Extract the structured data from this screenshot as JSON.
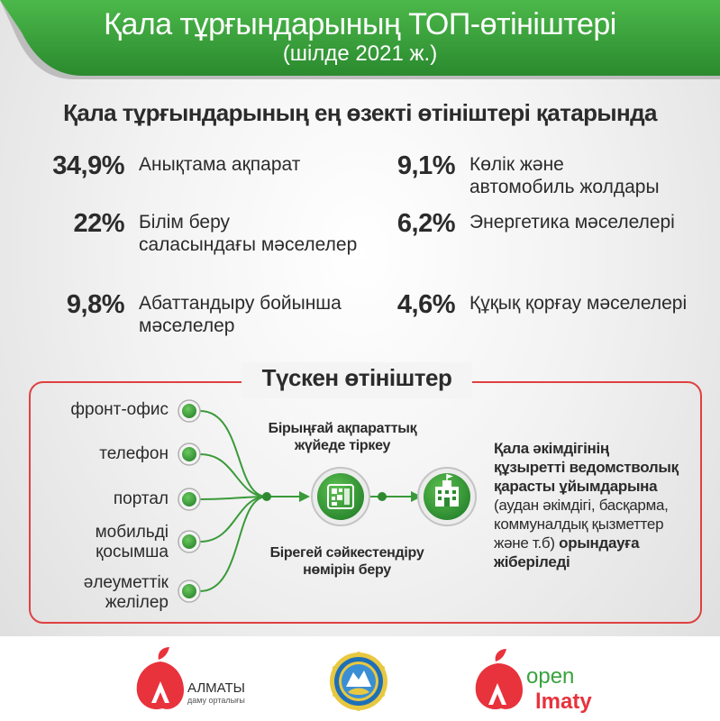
{
  "header": {
    "title": "Қала тұрғындарының ТОП-өтініштері",
    "subtitle": "(шілде 2021 ж.)"
  },
  "section_heading": "Қала тұрғындарының ең өзекті өтініштері қатарында",
  "stats": [
    {
      "percent": "34,9%",
      "label_line1": "Анықтама ақпарат",
      "label_line2": ""
    },
    {
      "percent": "22%",
      "label_line1": "Білім беру",
      "label_line2": "саласындағы мәселелер"
    },
    {
      "percent": "9,8%",
      "label_line1": "Абаттандыру бойынша",
      "label_line2": "мәселелер"
    },
    {
      "percent": "9,1%",
      "label_line1": "Көлік және",
      "label_line2": "автомобиль жолдары"
    },
    {
      "percent": "6,2%",
      "label_line1": "Энергетика мәселелері",
      "label_line2": ""
    },
    {
      "percent": "4,6%",
      "label_line1": "Құқық қорғау мәселелері",
      "label_line2": ""
    }
  ],
  "flow": {
    "title": "Түскен өтініштер",
    "channels": [
      {
        "line1": "фронт-офис",
        "line2": ""
      },
      {
        "line1": "телефон",
        "line2": ""
      },
      {
        "line1": "портал",
        "line2": ""
      },
      {
        "line1": "мобильді",
        "line2": "қосымша"
      },
      {
        "line1": "әлеуметтік",
        "line2": "желілер"
      }
    ],
    "step1_line1": "Бірыңғай ақпараттық",
    "step1_line2": "жүйеде тіркеу",
    "step2_line1": "Бірегей сәйкестендіру",
    "step2_line2": "нөмірін беру",
    "result_bold1": "Қала әкімдігінің",
    "result_bold2": "құзыретті ведомстволық",
    "result_bold3": "қарасты ұйымдарына",
    "result_normal1": "(аудан әкімдігі, басқарма,",
    "result_normal2": "коммуналдық қызметтер",
    "result_normal3": "және т.б)",
    "result_bold4": "орындауға",
    "result_bold5": "жіберіледі"
  },
  "footer": {
    "almaty_logo_main": "АЛМАТЫ",
    "almaty_logo_sub": "даму орталығы",
    "open_logo_line1": "open",
    "open_logo_line2": "lmaty"
  },
  "colors": {
    "banner_green": "#2e9a32",
    "node_green": "#3aa23e",
    "line_green": "#3a9a3a",
    "box_red": "#e04040",
    "logo_red": "#e8323c"
  }
}
